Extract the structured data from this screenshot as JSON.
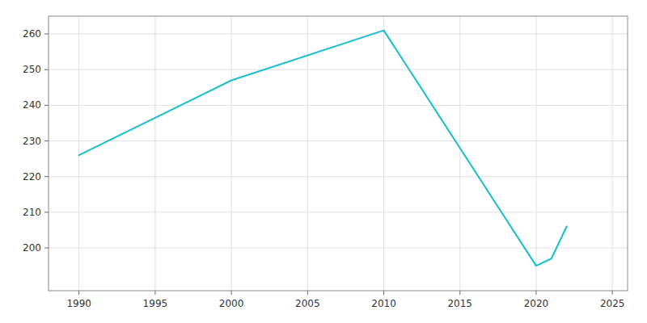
{
  "chart_data": {
    "type": "line",
    "x": [
      1990,
      2000,
      2010,
      2020,
      2021,
      2022
    ],
    "values": [
      226,
      247,
      261,
      195,
      197,
      206
    ],
    "color": "#17BECF",
    "xlim": [
      1988,
      2026
    ],
    "ylim": [
      188,
      265
    ],
    "xticks": [
      1990,
      1995,
      2000,
      2005,
      2010,
      2015,
      2020,
      2025
    ],
    "yticks": [
      200,
      210,
      220,
      230,
      240,
      250,
      260
    ],
    "grid": true
  }
}
